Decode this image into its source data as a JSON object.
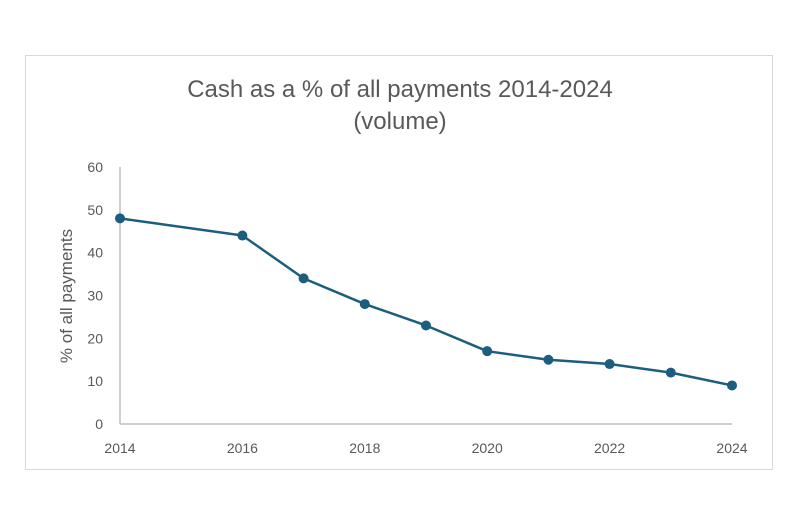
{
  "chart_data": {
    "type": "line",
    "title": "Cash as a % of all payments 2014-2024",
    "subtitle": "(volume)",
    "xlabel": "",
    "ylabel": "% of all payments",
    "x": [
      2014,
      2016,
      2017,
      2018,
      2019,
      2020,
      2021,
      2022,
      2023,
      2024
    ],
    "series": [
      {
        "name": "Cash as a % of all payments",
        "values": [
          48,
          44,
          34,
          28,
          23,
          17,
          15,
          14,
          12,
          9
        ],
        "color": "#1b5e7e"
      }
    ],
    "x_ticks": [
      "2014",
      "2016",
      "2018",
      "2020",
      "2022",
      "2024"
    ],
    "y_ticks": [
      "0",
      "10",
      "20",
      "30",
      "40",
      "50",
      "60"
    ],
    "ylim": [
      0,
      60
    ],
    "xlim": [
      2014,
      2024
    ],
    "grid": false,
    "legend": "none"
  }
}
